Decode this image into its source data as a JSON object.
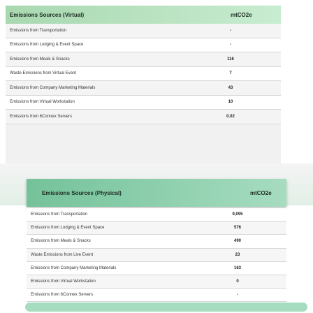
{
  "virtual": {
    "title": "Emissions Sources (Virtual)",
    "unit": "mtCO2e",
    "rows": [
      [
        "Emissions from Transportation",
        "-"
      ],
      [
        "Emissions from Lodging & Event Space",
        "-"
      ],
      [
        "Emissions from Meals & Snacks",
        "116"
      ],
      [
        "Waste Emissions from Virtual Event",
        "7"
      ],
      [
        "Emissions from Company Marketing Materials",
        "43"
      ],
      [
        "Emissions from Virtual Workstation",
        "10"
      ],
      [
        "Emissions from 6Connex Servers",
        "0.02"
      ]
    ]
  },
  "physical": {
    "title": "Emissions Sources (Physical)",
    "unit": "mtCO2e",
    "rows": [
      [
        "Emissions from Transportation",
        "9,095"
      ],
      [
        "Emissions from Lodging & Event Space",
        "576"
      ],
      [
        "Emissions from Meals & Snacks",
        "490"
      ],
      [
        "Waste Emissions from Live Event",
        "23"
      ],
      [
        "Emissions from Company Marketing Materials",
        "163"
      ],
      [
        "Emissions from Virtual Workstation",
        "0"
      ],
      [
        "Emissions from 6Connex Servers",
        "-"
      ]
    ]
  }
}
